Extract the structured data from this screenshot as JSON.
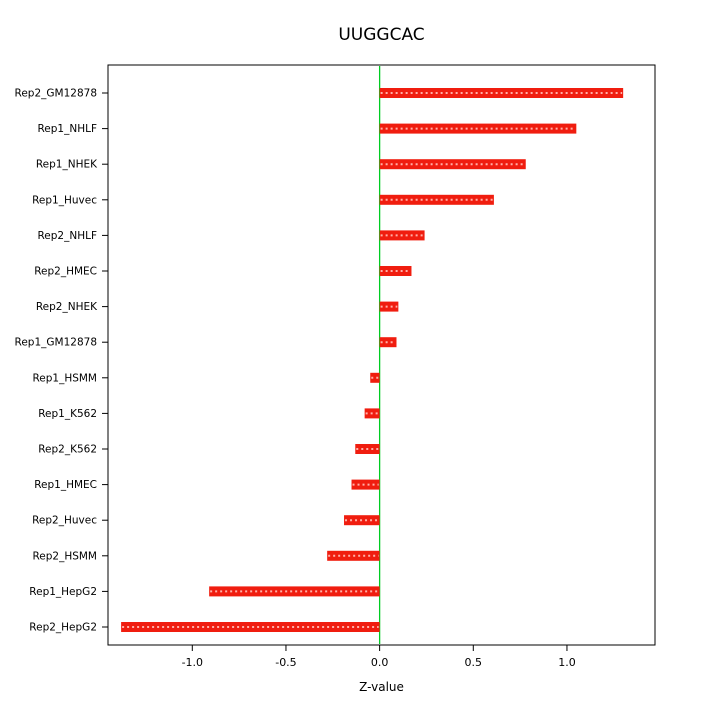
{
  "title": "UUGGCAC",
  "chart_data": {
    "type": "bar",
    "orientation": "horizontal",
    "title": "UUGGCAC",
    "xlabel": "Z-value",
    "ylabel": "",
    "categories": [
      "Rep2_GM12878",
      "Rep1_NHLF",
      "Rep1_NHEK",
      "Rep1_Huvec",
      "Rep2_NHLF",
      "Rep2_HMEC",
      "Rep2_NHEK",
      "Rep1_GM12878",
      "Rep1_HSMM",
      "Rep1_K562",
      "Rep2_K562",
      "Rep1_HMEC",
      "Rep2_Huvec",
      "Rep2_HSMM",
      "Rep1_HepG2",
      "Rep2_HepG2"
    ],
    "values": [
      1.3,
      1.05,
      0.78,
      0.61,
      0.24,
      0.17,
      0.1,
      0.09,
      -0.05,
      -0.08,
      -0.13,
      -0.15,
      -0.19,
      -0.28,
      -0.91,
      -1.38
    ],
    "xlim": [
      -1.45,
      1.47
    ],
    "xticks": [
      -1.0,
      -0.5,
      0.0,
      0.5,
      1.0
    ],
    "xtick_labels": [
      "-1.0",
      "-0.5",
      "0.0",
      "0.5",
      "1.0"
    ],
    "grid": false,
    "legend": "none",
    "bar_color": "#f01d0f",
    "bar_dash_color": "#ffb0a8",
    "zero_line_color": "#00cc22",
    "box_color": "#000000"
  }
}
